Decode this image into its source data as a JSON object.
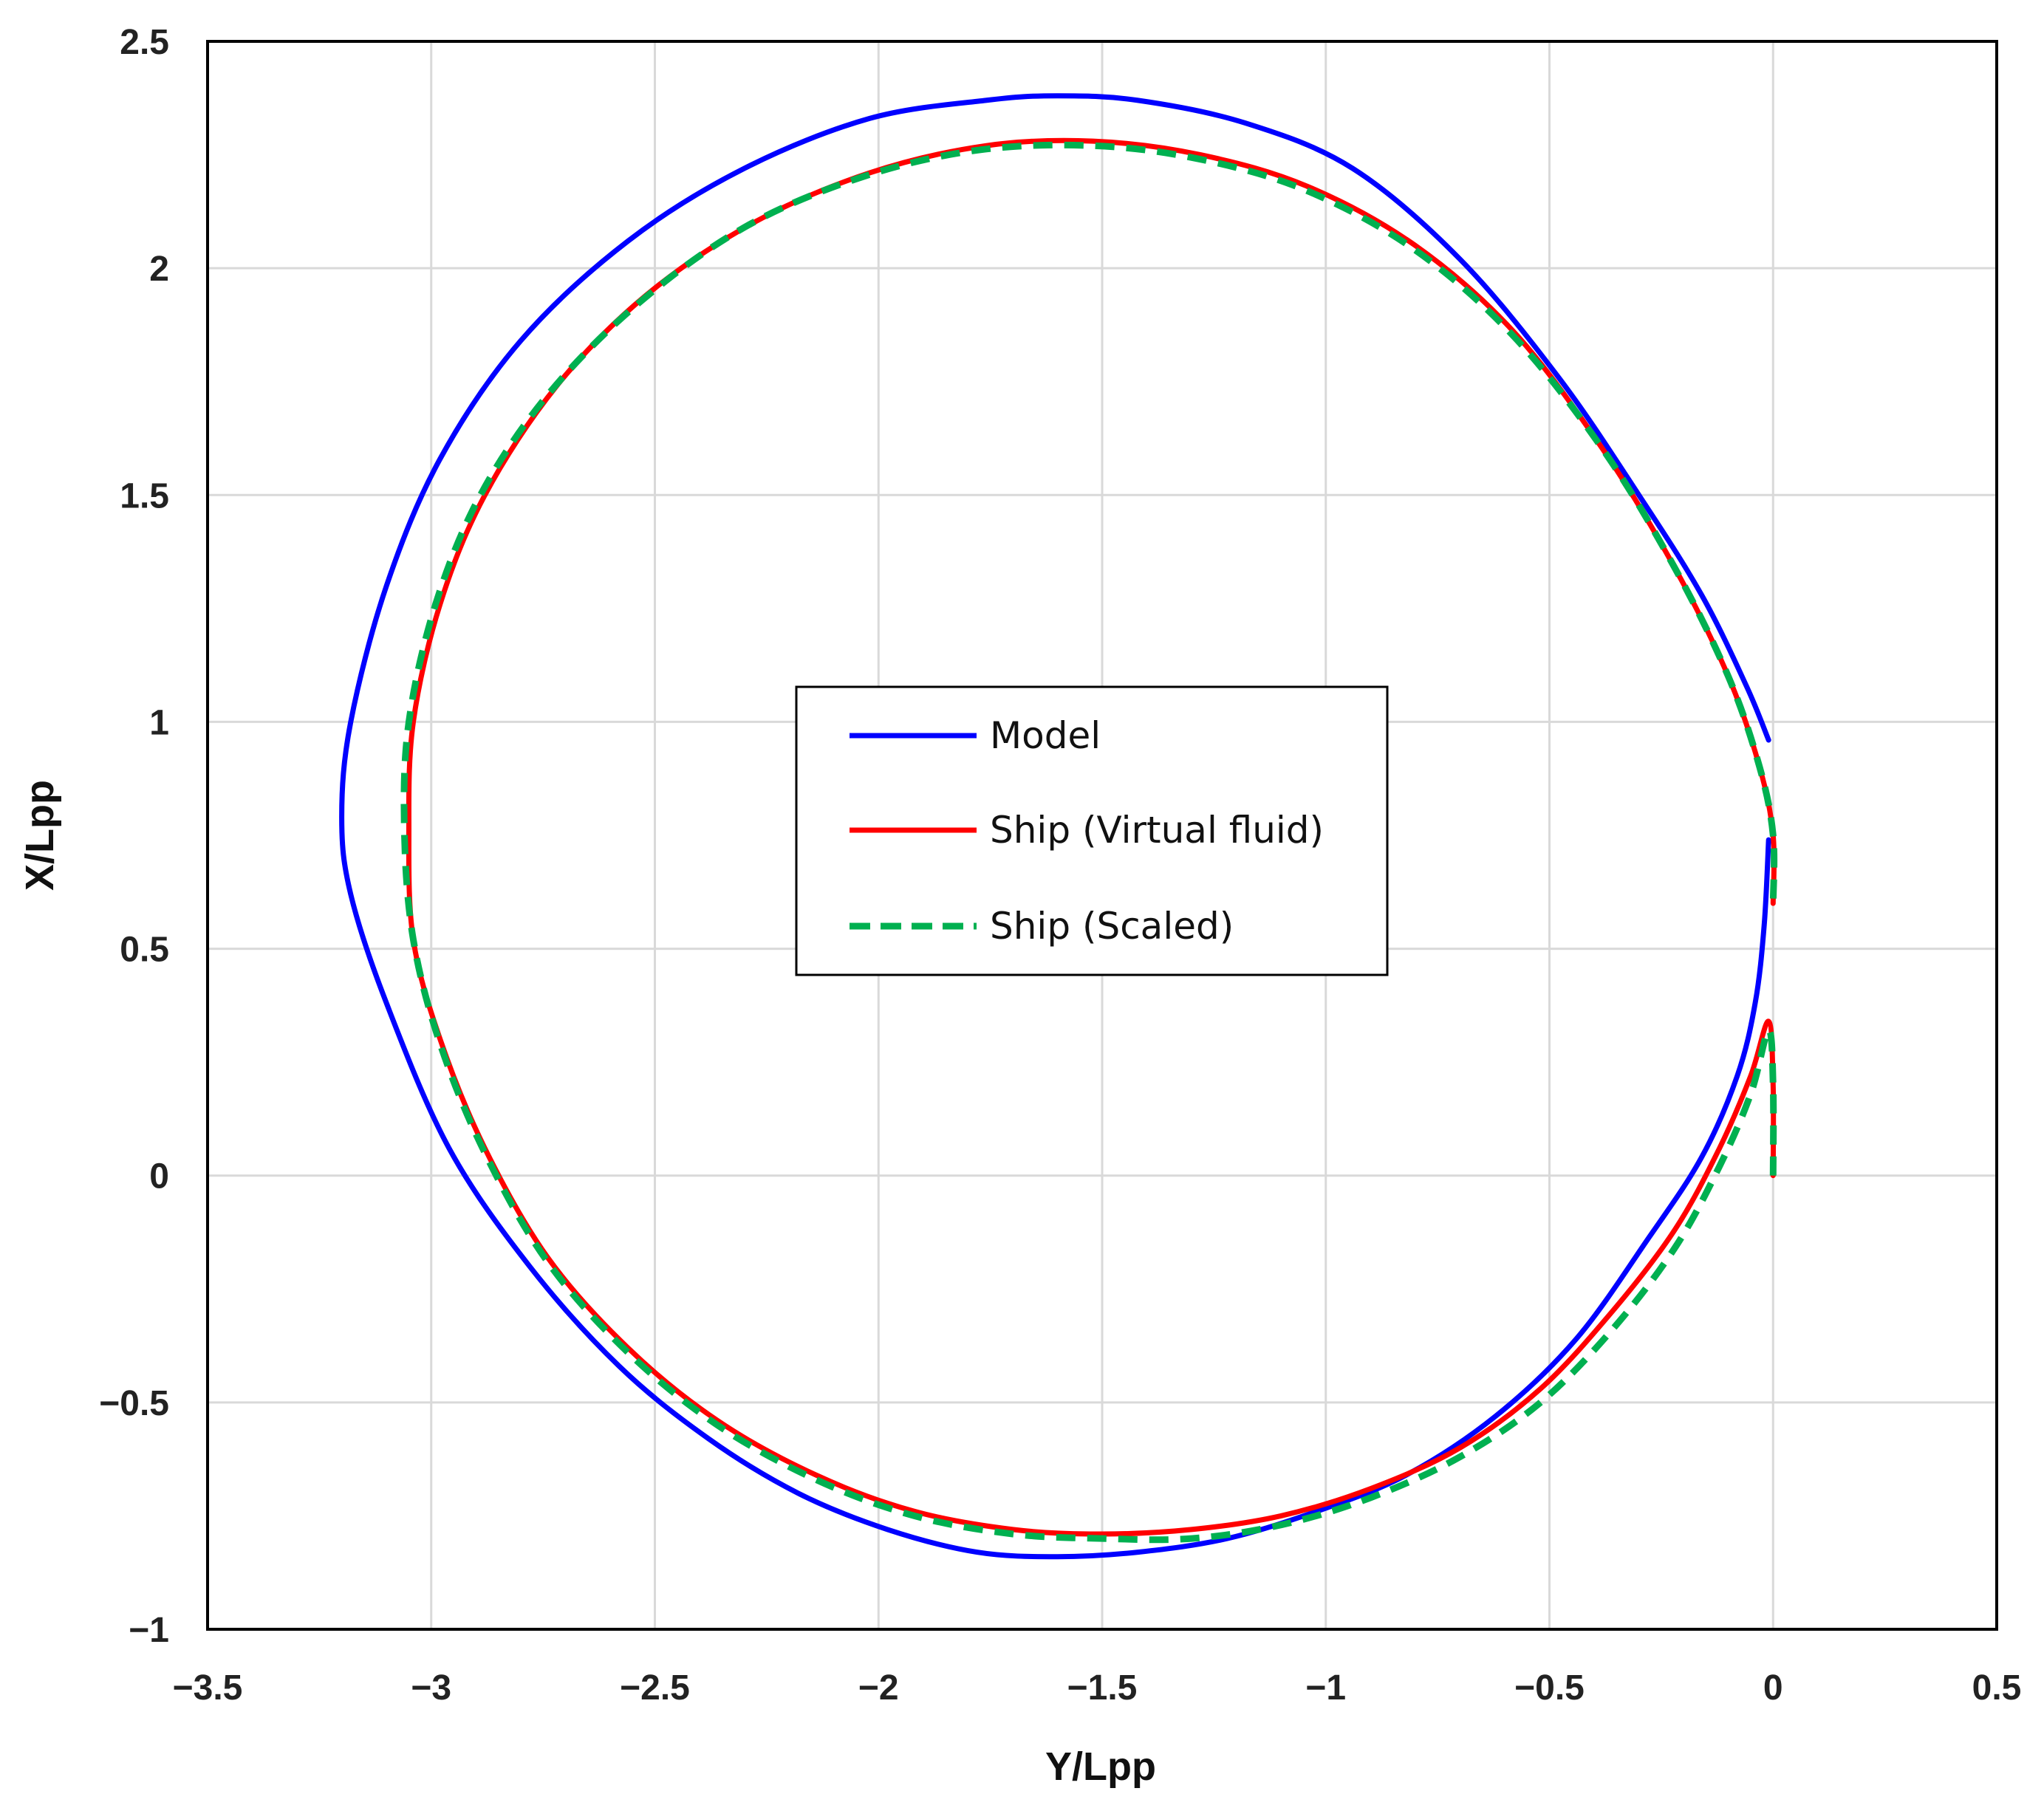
{
  "chart_data": {
    "type": "line",
    "xlabel": "Y/Lpp",
    "ylabel": "X/Lpp",
    "xlim": [
      -3.5,
      0.5
    ],
    "ylim": [
      -1,
      2.5
    ],
    "xticks": [
      -3.5,
      -3,
      -2.5,
      -2,
      -1.5,
      -1,
      -0.5,
      0,
      0.5
    ],
    "yticks": [
      -1,
      -0.5,
      0,
      0.5,
      1,
      1.5,
      2,
      2.5
    ],
    "xtick_labels": [
      "−3.5",
      "−3",
      "−2.5",
      "−2",
      "−1.5",
      "−1",
      "−0.5",
      "0",
      "0.5"
    ],
    "ytick_labels": [
      "−1",
      "−0.5",
      "0",
      "0.5",
      "1",
      "1.5",
      "2",
      "2.5"
    ],
    "grid": true,
    "legend_position": "center",
    "series": [
      {
        "name": "Model",
        "color": "#0000ff",
        "style": "solid",
        "x": [
          -0.01,
          -0.02,
          -0.04,
          -0.08,
          -0.16,
          -0.28,
          -0.44,
          -0.62,
          -0.82,
          -1.02,
          -1.22,
          -1.42,
          -1.6,
          -1.78,
          -1.98,
          -2.18,
          -2.38,
          -2.58,
          -2.78,
          -2.96,
          -3.1,
          -3.18,
          -3.2,
          -3.18,
          -3.1,
          -2.98,
          -2.8,
          -2.56,
          -2.3,
          -2.02,
          -1.76,
          -1.6,
          -1.42,
          -1.18,
          -0.94,
          -0.7,
          -0.48,
          -0.3,
          -0.16,
          -0.06,
          -0.01
        ],
        "y": [
          0.74,
          0.55,
          0.38,
          0.22,
          0.04,
          -0.14,
          -0.36,
          -0.53,
          -0.66,
          -0.74,
          -0.8,
          -0.83,
          -0.84,
          -0.83,
          -0.78,
          -0.7,
          -0.58,
          -0.42,
          -0.2,
          0.06,
          0.38,
          0.62,
          0.79,
          1.0,
          1.3,
          1.58,
          1.84,
          2.06,
          2.22,
          2.33,
          2.37,
          2.38,
          2.37,
          2.32,
          2.22,
          2.02,
          1.76,
          1.5,
          1.28,
          1.08,
          0.96
        ]
      },
      {
        "name": "Ship (Virtual fluid)",
        "color": "#ff0000",
        "style": "solid",
        "x": [
          0.0,
          0.0,
          -0.01,
          -0.05,
          -0.12,
          -0.22,
          -0.36,
          -0.52,
          -0.7,
          -0.9,
          -1.1,
          -1.3,
          -1.5,
          -1.7,
          -1.92,
          -2.14,
          -2.36,
          -2.56,
          -2.74,
          -2.88,
          -2.98,
          -3.04,
          -3.05,
          -3.04,
          -2.98,
          -2.88,
          -2.72,
          -2.52,
          -2.28,
          -2.02,
          -1.76,
          -1.52,
          -1.28,
          -1.04,
          -0.8,
          -0.58,
          -0.38,
          -0.22,
          -0.1,
          -0.03,
          0.0,
          0.0
        ],
        "y": [
          0.0,
          0.2,
          0.34,
          0.22,
          0.06,
          -0.12,
          -0.3,
          -0.47,
          -0.6,
          -0.69,
          -0.75,
          -0.78,
          -0.79,
          -0.78,
          -0.74,
          -0.66,
          -0.54,
          -0.38,
          -0.18,
          0.06,
          0.3,
          0.52,
          0.76,
          1.0,
          1.26,
          1.5,
          1.74,
          1.94,
          2.1,
          2.21,
          2.27,
          2.28,
          2.25,
          2.18,
          2.05,
          1.86,
          1.6,
          1.34,
          1.1,
          0.9,
          0.75,
          0.6
        ]
      },
      {
        "name": "Ship (Scaled)",
        "color": "#00b050",
        "style": "dashed",
        "x": [
          0.0,
          0.0,
          -0.01,
          -0.05,
          -0.12,
          -0.22,
          -0.36,
          -0.52,
          -0.7,
          -0.9,
          -1.1,
          -1.3,
          -1.5,
          -1.7,
          -1.92,
          -2.14,
          -2.36,
          -2.56,
          -2.74,
          -2.88,
          -2.98,
          -3.04,
          -3.06,
          -3.05,
          -2.99,
          -2.89,
          -2.74,
          -2.54,
          -2.3,
          -2.04,
          -1.78,
          -1.52,
          -1.28,
          -1.04,
          -0.8,
          -0.58,
          -0.38,
          -0.22,
          -0.1,
          -0.03,
          0.0,
          0.0
        ],
        "y": [
          0.0,
          0.2,
          0.32,
          0.18,
          0.02,
          -0.16,
          -0.34,
          -0.5,
          -0.62,
          -0.71,
          -0.77,
          -0.8,
          -0.8,
          -0.79,
          -0.75,
          -0.67,
          -0.55,
          -0.39,
          -0.19,
          0.05,
          0.29,
          0.52,
          0.76,
          1.0,
          1.26,
          1.5,
          1.72,
          1.92,
          2.09,
          2.2,
          2.26,
          2.27,
          2.24,
          2.17,
          2.04,
          1.85,
          1.6,
          1.34,
          1.1,
          0.9,
          0.75,
          0.6
        ]
      }
    ]
  }
}
